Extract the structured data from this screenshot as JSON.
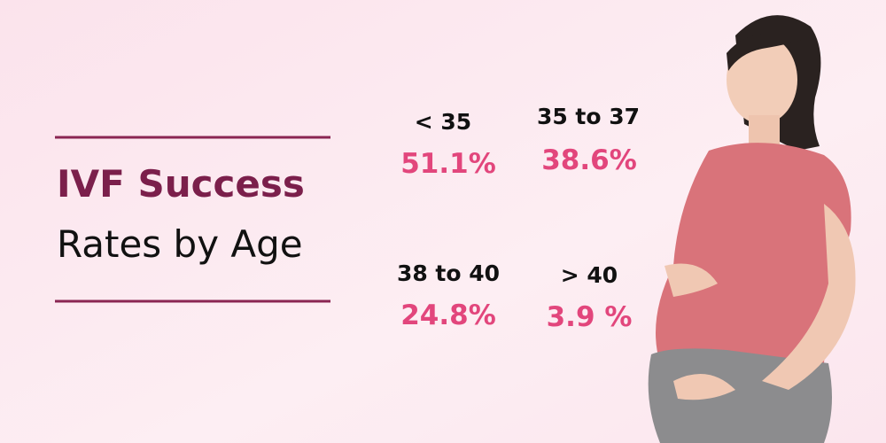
{
  "title": {
    "line1": "IVF Success",
    "line2": "Rates by Age"
  },
  "stats": [
    {
      "label": "< 35",
      "value": "51.1%"
    },
    {
      "label": "35 to 37",
      "value": "38.6%"
    },
    {
      "label": "38 to 40",
      "value": "24.8%"
    },
    {
      "label": "> 40",
      "value": "3.9 %"
    }
  ]
}
